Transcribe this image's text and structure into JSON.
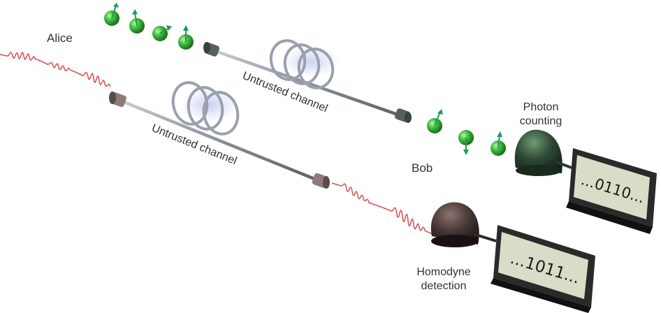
{
  "labels": {
    "alice": "Alice",
    "bob": "Bob",
    "channel_top": "Untrusted channel",
    "channel_bottom": "Untrusted channel",
    "photon_line1": "Photon",
    "photon_line2": "counting",
    "homodyne_line1": "Homodyne",
    "homodyne_line2": "detection"
  },
  "displays": {
    "photon_counter": "...0110...",
    "homodyne_counter": "...1011..."
  },
  "colors": {
    "photon_green": "#3fbf3f",
    "spin_arrow": "#1f9a5a",
    "pulse_red": "#d4565a",
    "fiber_gray": "#8a8f99",
    "detector_green": "#2f4a34",
    "detector_brown": "#4a3a38",
    "display_bg": "#d8ddc8"
  }
}
